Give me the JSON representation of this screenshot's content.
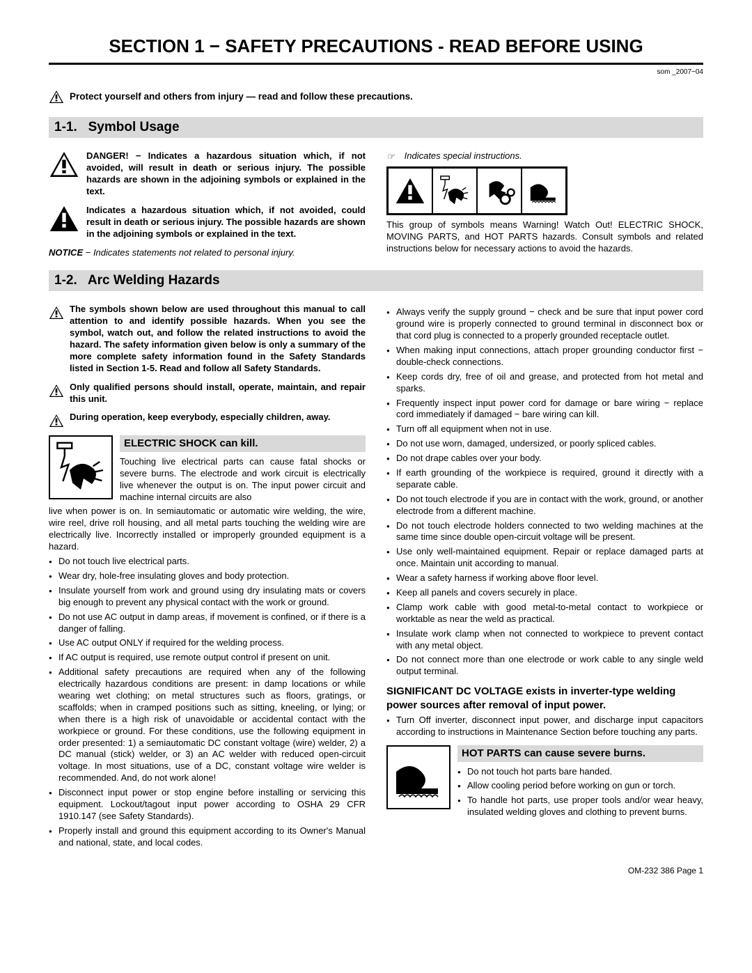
{
  "section_title": "SECTION 1 − SAFETY PRECAUTIONS - READ BEFORE USING",
  "rev": "som _2007−04",
  "intro": "Protect yourself and others from injury — read and follow these precautions.",
  "sub1": {
    "num": "1-1.",
    "title": "Symbol Usage"
  },
  "danger": "DANGER! − Indicates a hazardous situation which, if not avoided, will result in death or serious injury. The possible hazards are shown in the adjoining symbols or explained in the text.",
  "warning": "Indicates a hazardous situation which, if not avoided, could result in death or serious injury. The possible hazards are shown in the adjoining symbols or explained in the text.",
  "notice_b": "NOTICE",
  "notice_t": " − Indicates statements not related to personal injury.",
  "special": "Indicates special instructions.",
  "group_caption": "This group of symbols means Warning! Watch Out! ELECTRIC SHOCK, MOVING PARTS, and HOT PARTS hazards. Consult symbols and related instructions below for necessary actions to avoid the hazards.",
  "sub2": {
    "num": "1-2.",
    "title": "Arc Welding Hazards"
  },
  "haz_intro": "The symbols shown below are used throughout this manual to call attention to and identify possible hazards. When you see the symbol, watch out, and follow the related instructions to avoid the hazard. The safety information given below is only a summary of the more complete safety information found in the Safety Standards listed in Section 1-5. Read and follow all Safety Standards.",
  "haz_qual": "Only qualified persons should install, operate, maintain, and repair this unit.",
  "haz_kids": "During operation, keep everybody, especially children, away.",
  "shock_head": "ELECTRIC SHOCK can kill.",
  "shock_intro": "Touching live electrical parts can cause fatal shocks or severe burns. The electrode and work circuit is electrically live whenever the output is on. The input power circuit and machine internal circuits are also",
  "shock_cont": "live when power is on. In semiautomatic or automatic wire welding, the wire, wire reel, drive roll housing, and all metal parts touching the welding wire are electrically live. Incorrectly installed or improperly grounded equipment is a hazard.",
  "left_bullets": [
    "Do not touch live electrical parts.",
    "Wear dry, hole-free insulating gloves and body protection.",
    "Insulate yourself from work and ground using dry insulating mats or covers big enough to prevent any physical contact with the work or ground.",
    "Do not use AC output in damp areas, if movement is confined, or if there is a danger of falling.",
    "Use AC output ONLY if required for the welding process.",
    "If AC output is required, use remote output control if present on unit.",
    "Additional safety precautions are required when any of the following electrically hazardous conditions are present: in damp locations or while wearing wet clothing; on metal structures such as floors, gratings, or scaffolds; when in cramped positions such as sitting, kneeling, or lying; or when there is a high risk of unavoidable or accidental contact with the workpiece or ground. For these conditions, use the following equipment in order presented: 1) a semiautomatic DC constant voltage (wire) welder, 2) a DC manual (stick) welder, or 3) an AC welder with reduced open-circuit voltage. In most situations, use of a DC, constant voltage wire welder is recommended. And, do not work alone!",
    "Disconnect input power or stop engine before installing or servicing this equipment. Lockout/tagout input power according to OSHA 29 CFR 1910.147 (see Safety Standards).",
    "Properly install and ground this equipment according to its Owner's Manual and national, state, and local codes."
  ],
  "right_bullets": [
    "Always verify the supply ground − check and be sure that input power cord ground wire is properly connected to ground terminal in disconnect box or that cord plug is connected to a properly grounded receptacle outlet.",
    "When making input connections, attach proper grounding conductor first − double-check connections.",
    "Keep cords dry, free of oil and grease, and protected from hot metal and sparks.",
    "Frequently inspect input power cord for damage or bare wiring − replace cord immediately if damaged − bare wiring can kill.",
    "Turn off all equipment when not in use.",
    "Do not use worn, damaged, undersized, or poorly spliced cables.",
    "Do not drape cables over your body.",
    "If earth grounding of the workpiece is required, ground it directly with a separate cable.",
    "Do not touch electrode if you are in contact with the work, ground, or another electrode from a different machine.",
    "Do not touch electrode holders connected to two welding machines at the same time since double open-circuit voltage will be present.",
    "Use only well-maintained equipment. Repair or replace damaged parts at once. Maintain unit according to manual.",
    "Wear a safety harness if working above floor level.",
    "Keep all panels and covers securely in place.",
    "Clamp work cable with good metal-to-metal contact to workpiece or worktable as near the weld as practical.",
    "Insulate work clamp when not connected to workpiece to prevent contact with any metal object.",
    "Do not connect more than one electrode or work cable to any single weld output terminal."
  ],
  "sig_head": "SIGNIFICANT DC VOLTAGE exists in inverter-type welding power sources after removal of input power.",
  "sig_bullet": "Turn Off inverter, disconnect input power, and discharge input capacitors according to instructions in Maintenance Section before touching any parts.",
  "hot_head": "HOT PARTS can cause severe burns.",
  "hot_bullets": [
    "Do not touch hot parts bare handed.",
    "Allow cooling period before working on gun or torch.",
    "To handle hot parts, use proper tools and/or wear heavy, insulated welding gloves and clothing to prevent burns."
  ],
  "footer": "OM-232 386 Page 1",
  "colors": {
    "gray": "#d9d9d9"
  }
}
